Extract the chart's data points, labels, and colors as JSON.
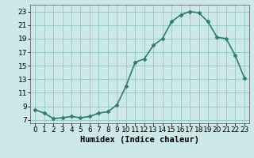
{
  "x": [
    0,
    1,
    2,
    3,
    4,
    5,
    6,
    7,
    8,
    9,
    10,
    11,
    12,
    13,
    14,
    15,
    16,
    17,
    18,
    19,
    20,
    21,
    22,
    23
  ],
  "y": [
    8.5,
    8.0,
    7.2,
    7.3,
    7.5,
    7.3,
    7.5,
    8.0,
    8.2,
    9.2,
    12.0,
    15.5,
    16.0,
    18.0,
    19.0,
    21.5,
    22.5,
    23.0,
    22.8,
    21.5,
    19.2,
    19.0,
    16.5,
    13.2
  ],
  "line_color": "#2e7d6e",
  "marker": "D",
  "marker_size": 2.5,
  "bg_color": "#cce8e8",
  "grid_color": "#99cccc",
  "xlabel": "Humidex (Indice chaleur)",
  "xlim": [
    -0.5,
    23.5
  ],
  "ylim": [
    6.5,
    24
  ],
  "yticks": [
    7,
    9,
    11,
    13,
    15,
    17,
    19,
    21,
    23
  ],
  "xticks": [
    0,
    1,
    2,
    3,
    4,
    5,
    6,
    7,
    8,
    9,
    10,
    11,
    12,
    13,
    14,
    15,
    16,
    17,
    18,
    19,
    20,
    21,
    22,
    23
  ],
  "xlabel_fontsize": 7.5,
  "tick_fontsize": 6.5,
  "linewidth": 1.2
}
